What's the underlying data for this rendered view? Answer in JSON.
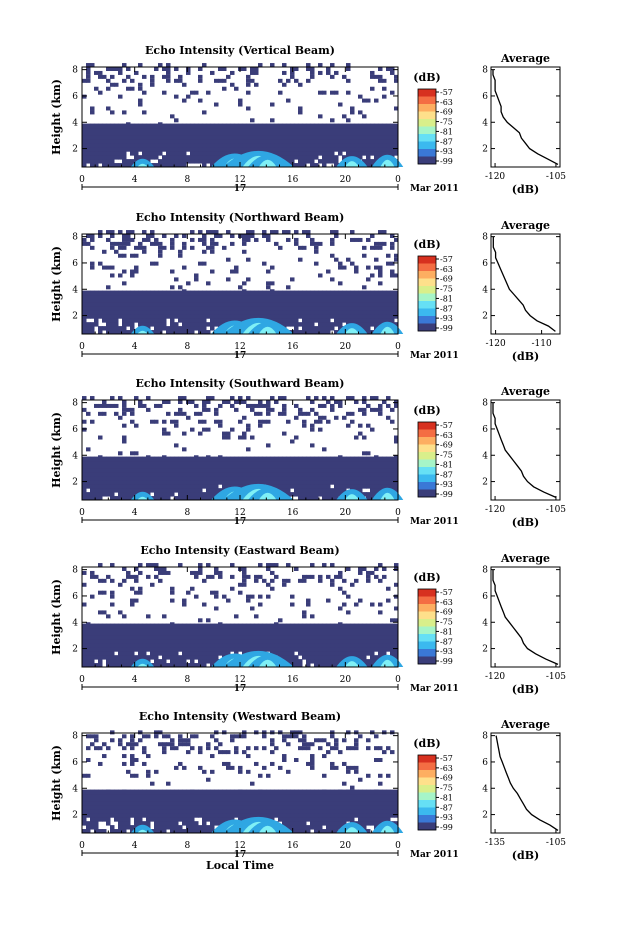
{
  "figure": {
    "xlabel": "Local Time",
    "date_label": "Mar 2011",
    "day_label": "17",
    "height_label": "Height (km)",
    "colorbar_unit": "(dB)",
    "average_title": "Average",
    "average_xlabel": "(dB)",
    "colors": {
      "background_echo": "#3a3d79",
      "mid_echo": "#2fa7e3",
      "strong_echo": "#7ff0f6"
    }
  },
  "chart_data": [
    {
      "type": "heatmap",
      "title": "Echo Intensity (Vertical Beam)",
      "xlabel": "",
      "ylabel": "Height (km)",
      "x_ticks": [
        "0",
        "4",
        "8",
        "12",
        "16",
        "20",
        "0"
      ],
      "x_range_hours": [
        0,
        24
      ],
      "y_ticks": [
        "2",
        "4",
        "6",
        "8"
      ],
      "y_range_km": [
        0.6,
        8.2
      ],
      "colorbar": {
        "unit": "(dB)",
        "levels": [
          "-57",
          "-63",
          "-69",
          "-75",
          "-81",
          "-87",
          "-93",
          "-99"
        ]
      },
      "profile": {
        "title": "Average",
        "xlabel": "(dB)",
        "x_ticks": [
          "-120",
          "-105"
        ],
        "x_range": [
          -121,
          -104
        ],
        "y_ticks": [
          "2",
          "4",
          "6",
          "8"
        ],
        "heights_km": [
          0.8,
          1.2,
          1.6,
          2.0,
          2.4,
          2.8,
          3.2,
          3.6,
          4.0,
          4.4,
          4.8,
          5.2,
          5.6,
          6.0,
          6.4,
          6.8,
          7.2,
          7.6,
          8.0
        ],
        "values_db": [
          -104.5,
          -107.0,
          -109.5,
          -111.5,
          -112.5,
          -113.5,
          -114.0,
          -115.5,
          -117.0,
          -118.0,
          -118.5,
          -118.5,
          -119.0,
          -119.5,
          -120.0,
          -120.0,
          -120.0,
          -120.5,
          -120.5
        ]
      }
    },
    {
      "type": "heatmap",
      "title": "Echo Intensity (Northward Beam)",
      "xlabel": "",
      "ylabel": "Height (km)",
      "x_ticks": [
        "0",
        "4",
        "8",
        "12",
        "16",
        "20",
        "0"
      ],
      "x_range_hours": [
        0,
        24
      ],
      "y_ticks": [
        "2",
        "4",
        "6",
        "8"
      ],
      "y_range_km": [
        0.6,
        8.2
      ],
      "colorbar": {
        "unit": "(dB)",
        "levels": [
          "-57",
          "-63",
          "-69",
          "-75",
          "-81",
          "-87",
          "-93",
          "-99"
        ]
      },
      "profile": {
        "title": "Average",
        "xlabel": "(dB)",
        "x_ticks": [
          "-120",
          "-110"
        ],
        "x_range": [
          -121,
          -106
        ],
        "y_ticks": [
          "2",
          "4",
          "6",
          "8"
        ],
        "heights_km": [
          0.8,
          1.2,
          1.6,
          2.0,
          2.4,
          2.8,
          3.2,
          3.6,
          4.0,
          4.4,
          4.8,
          5.2,
          5.6,
          6.0,
          6.4,
          6.8,
          7.2,
          7.6,
          8.0
        ],
        "values_db": [
          -107.0,
          -108.5,
          -111.0,
          -112.5,
          -113.5,
          -114.0,
          -115.0,
          -116.0,
          -117.0,
          -117.5,
          -118.0,
          -118.5,
          -119.0,
          -119.5,
          -120.0,
          -120.0,
          -120.5,
          -120.5,
          -120.5
        ]
      }
    },
    {
      "type": "heatmap",
      "title": "Echo Intensity (Southward Beam)",
      "xlabel": "",
      "ylabel": "Height (km)",
      "x_ticks": [
        "0",
        "4",
        "8",
        "12",
        "16",
        "20",
        "0"
      ],
      "x_range_hours": [
        0,
        24
      ],
      "y_ticks": [
        "2",
        "4",
        "6",
        "8"
      ],
      "y_range_km": [
        0.6,
        8.2
      ],
      "colorbar": {
        "unit": "(dB)",
        "levels": [
          "-57",
          "-63",
          "-69",
          "-75",
          "-81",
          "-87",
          "-93",
          "-99"
        ]
      },
      "profile": {
        "title": "Average",
        "xlabel": "(dB)",
        "x_ticks": [
          "-120",
          "-105"
        ],
        "x_range": [
          -121,
          -104
        ],
        "y_ticks": [
          "2",
          "4",
          "6",
          "8"
        ],
        "heights_km": [
          0.8,
          1.2,
          1.6,
          2.0,
          2.4,
          2.8,
          3.2,
          3.6,
          4.0,
          4.4,
          4.8,
          5.2,
          5.6,
          6.0,
          6.4,
          6.8,
          7.2,
          7.6,
          8.0
        ],
        "values_db": [
          -105.0,
          -108.0,
          -110.5,
          -112.0,
          -113.0,
          -113.5,
          -114.5,
          -115.5,
          -116.5,
          -117.5,
          -118.0,
          -118.5,
          -119.0,
          -119.5,
          -120.0,
          -120.0,
          -120.5,
          -120.5,
          -120.5
        ]
      }
    },
    {
      "type": "heatmap",
      "title": "Echo Intensity (Eastward Beam)",
      "xlabel": "",
      "ylabel": "Height (km)",
      "x_ticks": [
        "0",
        "4",
        "8",
        "12",
        "16",
        "20",
        "0"
      ],
      "x_range_hours": [
        0,
        24
      ],
      "y_ticks": [
        "2",
        "4",
        "6",
        "8"
      ],
      "y_range_km": [
        0.6,
        8.2
      ],
      "colorbar": {
        "unit": "(dB)",
        "levels": [
          "-57",
          "-63",
          "-69",
          "-75",
          "-81",
          "-87",
          "-93",
          "-99"
        ]
      },
      "profile": {
        "title": "Average",
        "xlabel": "(dB)",
        "x_ticks": [
          "-120",
          "-105"
        ],
        "x_range": [
          -121,
          -104
        ],
        "y_ticks": [
          "2",
          "4",
          "6",
          "8"
        ],
        "heights_km": [
          0.8,
          1.2,
          1.6,
          2.0,
          2.4,
          2.8,
          3.2,
          3.6,
          4.0,
          4.4,
          4.8,
          5.2,
          5.6,
          6.0,
          6.4,
          6.8,
          7.2,
          7.6,
          8.0
        ],
        "values_db": [
          -104.5,
          -107.5,
          -110.0,
          -112.0,
          -113.0,
          -113.5,
          -114.5,
          -115.5,
          -116.5,
          -117.5,
          -118.0,
          -118.5,
          -119.0,
          -119.5,
          -120.0,
          -120.0,
          -120.5,
          -120.5,
          -120.5
        ]
      }
    },
    {
      "type": "heatmap",
      "title": "Echo Intensity (Westward Beam)",
      "xlabel": "Local Time",
      "ylabel": "Height (km)",
      "x_ticks": [
        "0",
        "4",
        "8",
        "12",
        "16",
        "20",
        "0"
      ],
      "x_range_hours": [
        0,
        24
      ],
      "y_ticks": [
        "2",
        "4",
        "6",
        "8"
      ],
      "y_range_km": [
        0.6,
        8.2
      ],
      "colorbar": {
        "unit": "(dB)",
        "levels": [
          "-57",
          "-63",
          "-69",
          "-75",
          "-81",
          "-87",
          "-93",
          "-99"
        ]
      },
      "profile": {
        "title": "Average",
        "xlabel": "(dB)",
        "x_ticks": [
          "-135",
          "-105"
        ],
        "x_range": [
          -137,
          -103
        ],
        "y_ticks": [
          "2",
          "4",
          "6",
          "8"
        ],
        "heights_km": [
          0.8,
          1.2,
          1.6,
          2.0,
          2.4,
          2.8,
          3.2,
          3.6,
          4.0,
          4.4,
          4.8,
          5.2,
          5.6,
          6.0,
          6.4,
          6.8,
          7.2,
          7.6,
          8.0
        ],
        "values_db": [
          -104.0,
          -108.0,
          -113.0,
          -117.0,
          -119.5,
          -121.0,
          -122.5,
          -124.0,
          -126.0,
          -127.5,
          -128.5,
          -129.5,
          -130.5,
          -131.5,
          -132.5,
          -133.0,
          -133.5,
          -134.0,
          -134.5
        ]
      }
    }
  ]
}
